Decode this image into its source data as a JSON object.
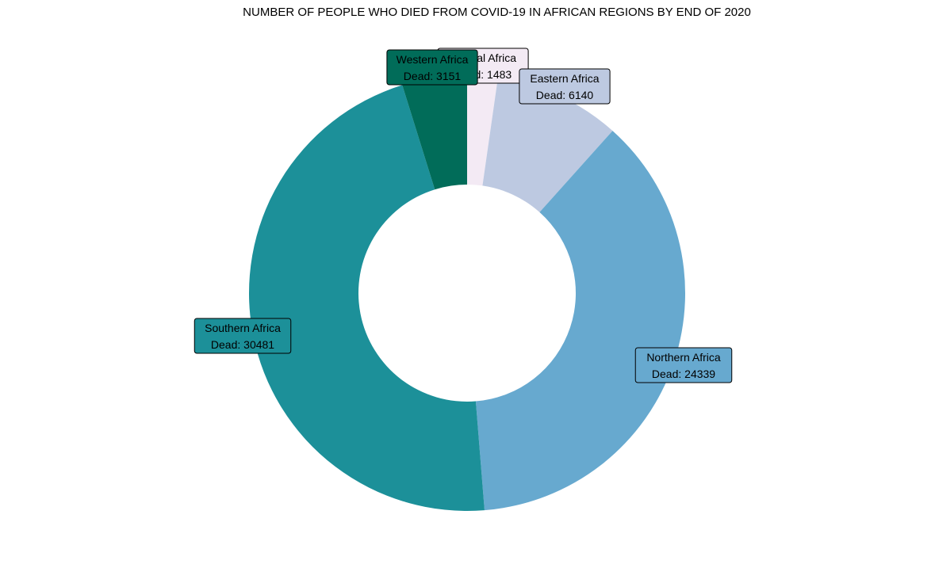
{
  "chart_data": {
    "type": "pie",
    "title": "NUMBER OF PEOPLE WHO DIED FROM COVID-19 IN AFRICAN REGIONS BY END OF 2020",
    "value_prefix": "Dead: ",
    "slices": [
      {
        "label": "Central Africa",
        "value": 1483,
        "color": "#f3eaf4",
        "text_color": "#000000"
      },
      {
        "label": "Eastern Africa",
        "value": 6140,
        "color": "#bdc9e1",
        "text_color": "#000000"
      },
      {
        "label": "Northern Africa",
        "value": 24339,
        "color": "#67a9cf",
        "text_color": "#000000"
      },
      {
        "label": "Southern Africa",
        "value": 30481,
        "color": "#1c9099",
        "text_color": "#000000"
      },
      {
        "label": "Western Africa",
        "value": 3151,
        "color": "#016c59",
        "text_color": "#000000"
      }
    ]
  }
}
